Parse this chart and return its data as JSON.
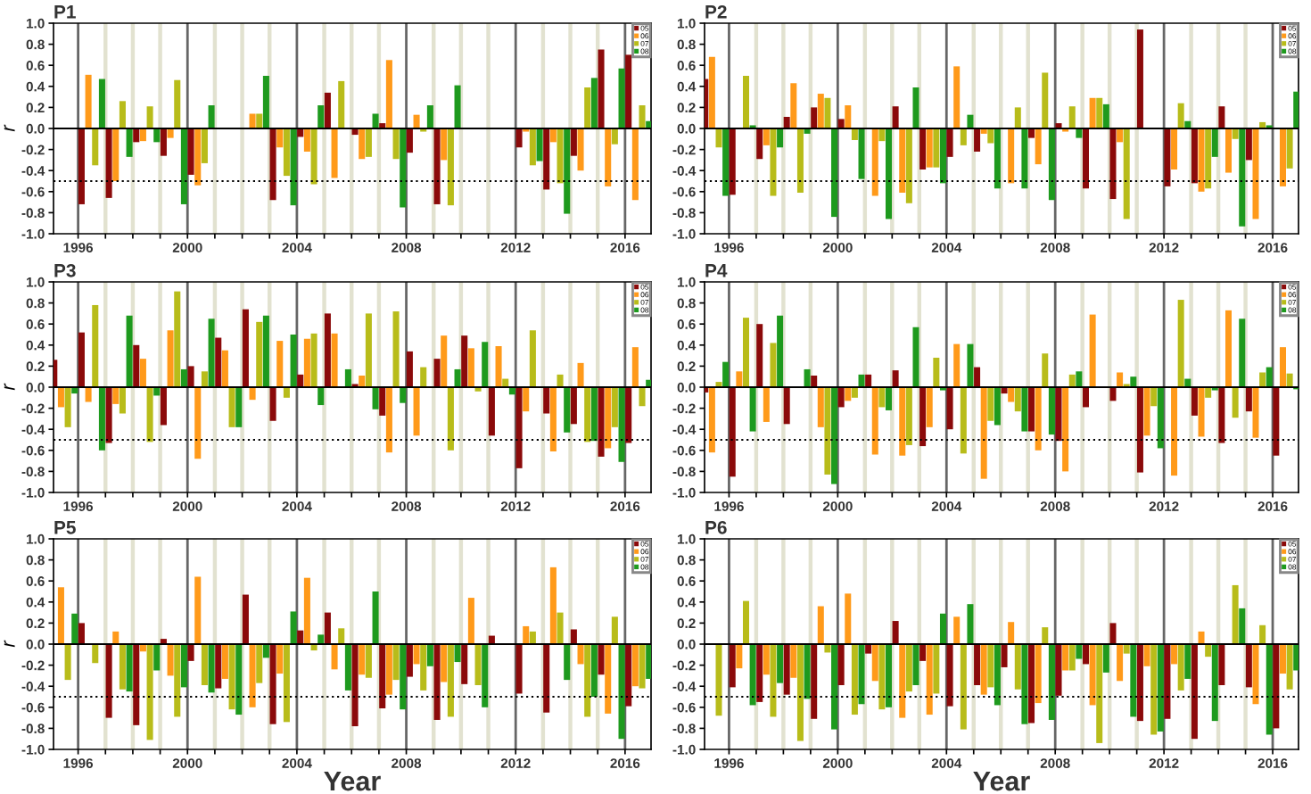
{
  "chart_data": [
    {
      "type": "bar",
      "title": "P1",
      "ylabel": "r",
      "x": [
        1996.5,
        1997.5,
        1998.5,
        1999.5,
        2000.5,
        2001.5,
        2002.5,
        2003.5,
        2004.5,
        2005.5,
        2006.5,
        2007.5,
        2008.5,
        2009.5,
        2010.5,
        2011.5,
        2012.5,
        2013.5,
        2014.5,
        2015.5,
        2016.5
      ],
      "series": [
        {
          "name": "05",
          "color": "#8b0a0a",
          "values": [
            -0.72,
            -0.66,
            -0.13,
            -0.26,
            -0.44,
            null,
            null,
            -0.68,
            -0.08,
            0.34,
            -0.06,
            0.05,
            -0.23,
            -0.72,
            null,
            null,
            -0.18,
            -0.58,
            -0.26,
            0.75,
            0.7
          ]
        },
        {
          "name": "06",
          "color": "#ff9a1a",
          "values": [
            0.51,
            -0.5,
            -0.12,
            -0.09,
            -0.54,
            null,
            0.14,
            -0.18,
            -0.22,
            -0.47,
            -0.29,
            0.65,
            0.13,
            -0.3,
            null,
            null,
            -0.03,
            -0.13,
            -0.4,
            -0.55,
            -0.68
          ]
        },
        {
          "name": "07",
          "color": "#b8bc1a",
          "values": [
            -0.35,
            0.26,
            0.21,
            0.46,
            -0.33,
            null,
            0.14,
            -0.45,
            -0.53,
            0.45,
            -0.27,
            -0.29,
            -0.03,
            -0.73,
            null,
            null,
            -0.35,
            -0.52,
            0.39,
            -0.15,
            0.22
          ]
        },
        {
          "name": "08",
          "color": "#1e9a1e",
          "values": [
            0.47,
            -0.27,
            -0.13,
            -0.72,
            0.22,
            null,
            0.5,
            -0.73,
            0.22,
            null,
            0.14,
            -0.75,
            0.22,
            0.41,
            null,
            null,
            -0.31,
            -0.81,
            0.48,
            0.57,
            0.07
          ]
        }
      ],
      "xlim": [
        1995.1,
        2016.95
      ],
      "ylim": [
        -1.0,
        1.0
      ],
      "xticks": [
        {
          "value": 1996,
          "label": "1996"
        },
        {
          "value": 1997,
          "label": null
        },
        {
          "value": 1998,
          "label": null
        },
        {
          "value": 1999,
          "label": null
        },
        {
          "value": 2000,
          "label": "2000"
        },
        {
          "value": 2001,
          "label": null
        },
        {
          "value": 2002,
          "label": null
        },
        {
          "value": 2003,
          "label": null
        },
        {
          "value": 2004,
          "label": "2004"
        },
        {
          "value": 2005,
          "label": null
        },
        {
          "value": 2006,
          "label": null
        },
        {
          "value": 2007,
          "label": null
        },
        {
          "value": 2008,
          "label": "2008"
        },
        {
          "value": 2009,
          "label": null
        },
        {
          "value": 2010,
          "label": null
        },
        {
          "value": 2011,
          "label": null
        },
        {
          "value": 2012,
          "label": "2012"
        },
        {
          "value": 2013,
          "label": null
        },
        {
          "value": 2014,
          "label": null
        },
        {
          "value": 2015,
          "label": null
        },
        {
          "value": 2016,
          "label": "2016"
        }
      ],
      "yticks": [
        {
          "value": -1.0,
          "label": "-1.0"
        },
        {
          "value": -0.8,
          "label": "-0.8"
        },
        {
          "value": -0.6,
          "label": "-0.6"
        },
        {
          "value": -0.4,
          "label": "-0.4"
        },
        {
          "value": -0.2,
          "label": "-0.2"
        },
        {
          "value": 0.0,
          "label": "0.0"
        },
        {
          "value": 0.2,
          "label": "0.2"
        },
        {
          "value": 0.4,
          "label": "0.4"
        },
        {
          "value": 0.6,
          "label": "0.6"
        },
        {
          "value": 0.8,
          "label": "0.8"
        },
        {
          "value": 1.0,
          "label": "1.0"
        }
      ],
      "grid": "x",
      "legend": "top right",
      "ref_lines": [
        {
          "axis": "y",
          "value": 0,
          "color": "#000000",
          "line_style": "solid"
        },
        {
          "axis": "y",
          "value": -0.5,
          "color": "#000000",
          "line_style": "dotted"
        }
      ]
    },
    {
      "type": "bar",
      "title": "P2",
      "x": [
        1995.5,
        1996.5,
        1997.5,
        1998.5,
        1999.5,
        2000.5,
        2001.5,
        2002.5,
        2003.5,
        2004.5,
        2005.5,
        2006.5,
        2007.5,
        2008.5,
        2009.5,
        2010.5,
        2011.5,
        2012.5,
        2013.5,
        2014.5,
        2015.5,
        2016.5
      ],
      "series": [
        {
          "name": "05",
          "color": "#8b0a0a",
          "values": [
            0.47,
            -0.63,
            -0.29,
            0.11,
            0.2,
            0.09,
            null,
            0.21,
            -0.39,
            -0.27,
            -0.22,
            null,
            -0.09,
            0.05,
            -0.57,
            -0.67,
            0.94,
            -0.55,
            -0.52,
            0.21,
            -0.3,
            null
          ]
        },
        {
          "name": "06",
          "color": "#ff9a1a",
          "values": [
            0.68,
            null,
            -0.16,
            0.43,
            0.33,
            0.22,
            -0.64,
            -0.61,
            -0.37,
            0.59,
            -0.05,
            -0.52,
            -0.34,
            -0.03,
            0.29,
            -0.13,
            null,
            -0.39,
            -0.6,
            -0.42,
            -0.86,
            -0.55
          ]
        },
        {
          "name": "07",
          "color": "#b8bc1a",
          "values": [
            -0.18,
            0.5,
            -0.64,
            -0.61,
            0.29,
            -0.11,
            -0.12,
            -0.71,
            -0.37,
            -0.16,
            -0.14,
            0.2,
            0.53,
            0.21,
            0.29,
            -0.86,
            null,
            0.24,
            -0.57,
            -0.1,
            0.06,
            -0.38
          ]
        },
        {
          "name": "08",
          "color": "#1e9a1e",
          "values": [
            -0.64,
            0.03,
            -0.18,
            -0.05,
            -0.84,
            -0.48,
            -0.86,
            0.39,
            -0.52,
            0.13,
            -0.57,
            -0.57,
            -0.68,
            -0.09,
            0.23,
            null,
            null,
            0.07,
            -0.27,
            -0.93,
            0.03,
            0.35
          ]
        }
      ],
      "xlim": [
        1995.1,
        2016.95
      ],
      "ylim": [
        -1.0,
        1.0
      ],
      "xticks": [
        {
          "value": 1996,
          "label": "1996"
        },
        {
          "value": 1997,
          "label": null
        },
        {
          "value": 1998,
          "label": null
        },
        {
          "value": 1999,
          "label": null
        },
        {
          "value": 2000,
          "label": "2000"
        },
        {
          "value": 2001,
          "label": null
        },
        {
          "value": 2002,
          "label": null
        },
        {
          "value": 2003,
          "label": null
        },
        {
          "value": 2004,
          "label": "2004"
        },
        {
          "value": 2005,
          "label": null
        },
        {
          "value": 2006,
          "label": null
        },
        {
          "value": 2007,
          "label": null
        },
        {
          "value": 2008,
          "label": "2008"
        },
        {
          "value": 2009,
          "label": null
        },
        {
          "value": 2010,
          "label": null
        },
        {
          "value": 2011,
          "label": null
        },
        {
          "value": 2012,
          "label": "2012"
        },
        {
          "value": 2013,
          "label": null
        },
        {
          "value": 2014,
          "label": null
        },
        {
          "value": 2015,
          "label": null
        },
        {
          "value": 2016,
          "label": "2016"
        }
      ],
      "yticks": [
        {
          "value": -1.0,
          "label": "-1.0"
        },
        {
          "value": -0.8,
          "label": "-0.8"
        },
        {
          "value": -0.6,
          "label": "-0.6"
        },
        {
          "value": -0.4,
          "label": "-0.4"
        },
        {
          "value": -0.2,
          "label": "-0.2"
        },
        {
          "value": 0.0,
          "label": "0.0"
        },
        {
          "value": 0.2,
          "label": "0.2"
        },
        {
          "value": 0.4,
          "label": "0.4"
        },
        {
          "value": 0.6,
          "label": "0.6"
        },
        {
          "value": 0.8,
          "label": "0.8"
        },
        {
          "value": 1.0,
          "label": "1.0"
        }
      ],
      "grid": "x",
      "legend": "top right",
      "ref_lines": [
        {
          "axis": "y",
          "value": 0,
          "color": "#000000",
          "line_style": "solid"
        },
        {
          "axis": "y",
          "value": -0.5,
          "color": "#000000",
          "line_style": "dotted"
        }
      ]
    },
    {
      "type": "bar",
      "title": "P3",
      "ylabel": "r",
      "x": [
        1995.5,
        1996.5,
        1997.5,
        1998.5,
        1999.5,
        2000.5,
        2001.5,
        2002.5,
        2003.5,
        2004.5,
        2005.5,
        2006.5,
        2007.5,
        2008.5,
        2009.5,
        2010.5,
        2011.5,
        2012.5,
        2013.5,
        2014.5,
        2015.5,
        2016.5
      ],
      "series": [
        {
          "name": "05",
          "color": "#8b0a0a",
          "values": [
            0.26,
            0.52,
            -0.53,
            0.4,
            -0.36,
            0.2,
            0.47,
            0.74,
            -0.32,
            0.12,
            0.7,
            0.03,
            -0.27,
            0.34,
            0.27,
            0.49,
            -0.46,
            -0.77,
            -0.25,
            -0.35,
            -0.66,
            -0.53
          ]
        },
        {
          "name": "06",
          "color": "#ff9a1a",
          "values": [
            -0.19,
            -0.14,
            -0.16,
            0.27,
            0.54,
            -0.68,
            0.35,
            -0.12,
            0.44,
            0.46,
            0.51,
            0.11,
            -0.62,
            -0.46,
            0.49,
            0.37,
            0.39,
            -0.23,
            -0.61,
            0.23,
            -0.58,
            0.38
          ]
        },
        {
          "name": "07",
          "color": "#b8bc1a",
          "values": [
            -0.38,
            0.78,
            -0.25,
            -0.52,
            0.91,
            0.15,
            -0.38,
            0.62,
            -0.1,
            0.51,
            null,
            0.7,
            0.72,
            0.19,
            -0.6,
            -0.04,
            0.08,
            0.54,
            0.12,
            -0.52,
            -0.38,
            -0.18
          ]
        },
        {
          "name": "08",
          "color": "#1e9a1e",
          "values": [
            -0.06,
            -0.6,
            0.68,
            -0.08,
            0.17,
            0.65,
            -0.38,
            0.68,
            0.5,
            -0.17,
            0.17,
            -0.21,
            -0.15,
            null,
            0.17,
            0.43,
            -0.07,
            null,
            -0.43,
            -0.51,
            -0.71,
            0.07
          ]
        }
      ],
      "xlim": [
        1995.1,
        2016.95
      ],
      "ylim": [
        -1.0,
        1.0
      ],
      "xticks": [
        {
          "value": 1996,
          "label": "1996"
        },
        {
          "value": 1997,
          "label": null
        },
        {
          "value": 1998,
          "label": null
        },
        {
          "value": 1999,
          "label": null
        },
        {
          "value": 2000,
          "label": "2000"
        },
        {
          "value": 2001,
          "label": null
        },
        {
          "value": 2002,
          "label": null
        },
        {
          "value": 2003,
          "label": null
        },
        {
          "value": 2004,
          "label": "2004"
        },
        {
          "value": 2005,
          "label": null
        },
        {
          "value": 2006,
          "label": null
        },
        {
          "value": 2007,
          "label": null
        },
        {
          "value": 2008,
          "label": "2008"
        },
        {
          "value": 2009,
          "label": null
        },
        {
          "value": 2010,
          "label": null
        },
        {
          "value": 2011,
          "label": null
        },
        {
          "value": 2012,
          "label": "2012"
        },
        {
          "value": 2013,
          "label": null
        },
        {
          "value": 2014,
          "label": null
        },
        {
          "value": 2015,
          "label": null
        },
        {
          "value": 2016,
          "label": "2016"
        }
      ],
      "yticks": [
        {
          "value": -1.0,
          "label": "-1.0"
        },
        {
          "value": -0.8,
          "label": "-0.8"
        },
        {
          "value": -0.6,
          "label": "-0.6"
        },
        {
          "value": -0.4,
          "label": "-0.4"
        },
        {
          "value": -0.2,
          "label": "-0.2"
        },
        {
          "value": 0.0,
          "label": "0.0"
        },
        {
          "value": 0.2,
          "label": "0.2"
        },
        {
          "value": 0.4,
          "label": "0.4"
        },
        {
          "value": 0.6,
          "label": "0.6"
        },
        {
          "value": 0.8,
          "label": "0.8"
        },
        {
          "value": 1.0,
          "label": "1.0"
        }
      ],
      "grid": "x",
      "legend": "top right",
      "ref_lines": [
        {
          "axis": "y",
          "value": 0,
          "color": "#000000",
          "line_style": "solid"
        },
        {
          "axis": "y",
          "value": -0.5,
          "color": "#000000",
          "line_style": "dotted"
        }
      ]
    },
    {
      "type": "bar",
      "title": "P4",
      "x": [
        1995.5,
        1996.5,
        1997.5,
        1998.5,
        1999.5,
        2000.5,
        2001.5,
        2002.5,
        2003.5,
        2004.5,
        2005.5,
        2006.5,
        2007.5,
        2008.5,
        2009.5,
        2010.5,
        2011.5,
        2012.5,
        2013.5,
        2014.5,
        2015.5,
        2016.5
      ],
      "series": [
        {
          "name": "05",
          "color": "#8b0a0a",
          "values": [
            -0.05,
            -0.85,
            0.6,
            -0.35,
            0.11,
            -0.19,
            0.12,
            0.16,
            -0.56,
            -0.4,
            0.19,
            -0.06,
            -0.42,
            -0.51,
            -0.19,
            -0.13,
            -0.81,
            null,
            -0.27,
            -0.53,
            -0.23,
            -0.65
          ]
        },
        {
          "name": "06",
          "color": "#ff9a1a",
          "values": [
            -0.62,
            0.15,
            -0.33,
            null,
            -0.38,
            -0.13,
            -0.64,
            -0.65,
            -0.38,
            0.41,
            -0.87,
            -0.14,
            -0.6,
            -0.8,
            0.69,
            0.14,
            -0.46,
            -0.84,
            -0.47,
            0.73,
            -0.48,
            0.38
          ]
        },
        {
          "name": "07",
          "color": "#b8bc1a",
          "values": [
            0.05,
            0.66,
            0.42,
            null,
            -0.83,
            -0.1,
            -0.19,
            -0.55,
            0.28,
            -0.63,
            -0.32,
            -0.23,
            0.32,
            0.12,
            null,
            0.03,
            -0.18,
            0.83,
            -0.1,
            -0.29,
            0.14,
            0.13
          ]
        },
        {
          "name": "08",
          "color": "#1e9a1e",
          "values": [
            0.24,
            -0.42,
            0.68,
            0.17,
            -0.92,
            0.12,
            -0.22,
            0.57,
            -0.03,
            0.41,
            -0.36,
            -0.42,
            -0.45,
            0.15,
            null,
            0.1,
            -0.58,
            0.08,
            -0.03,
            0.65,
            0.19,
            -0.02
          ]
        }
      ],
      "xlim": [
        1995.1,
        2016.95
      ],
      "ylim": [
        -1.0,
        1.0
      ],
      "xticks": [
        {
          "value": 1996,
          "label": "1996"
        },
        {
          "value": 1997,
          "label": null
        },
        {
          "value": 1998,
          "label": null
        },
        {
          "value": 1999,
          "label": null
        },
        {
          "value": 2000,
          "label": "2000"
        },
        {
          "value": 2001,
          "label": null
        },
        {
          "value": 2002,
          "label": null
        },
        {
          "value": 2003,
          "label": null
        },
        {
          "value": 2004,
          "label": "2004"
        },
        {
          "value": 2005,
          "label": null
        },
        {
          "value": 2006,
          "label": null
        },
        {
          "value": 2007,
          "label": null
        },
        {
          "value": 2008,
          "label": "2008"
        },
        {
          "value": 2009,
          "label": null
        },
        {
          "value": 2010,
          "label": null
        },
        {
          "value": 2011,
          "label": null
        },
        {
          "value": 2012,
          "label": "2012"
        },
        {
          "value": 2013,
          "label": null
        },
        {
          "value": 2014,
          "label": null
        },
        {
          "value": 2015,
          "label": null
        },
        {
          "value": 2016,
          "label": "2016"
        }
      ],
      "yticks": [
        {
          "value": -1.0,
          "label": "-1.0"
        },
        {
          "value": -0.8,
          "label": "-0.8"
        },
        {
          "value": -0.6,
          "label": "-0.6"
        },
        {
          "value": -0.4,
          "label": "-0.4"
        },
        {
          "value": -0.2,
          "label": "-0.2"
        },
        {
          "value": 0.0,
          "label": "0.0"
        },
        {
          "value": 0.2,
          "label": "0.2"
        },
        {
          "value": 0.4,
          "label": "0.4"
        },
        {
          "value": 0.6,
          "label": "0.6"
        },
        {
          "value": 0.8,
          "label": "0.8"
        },
        {
          "value": 1.0,
          "label": "1.0"
        }
      ],
      "grid": "x",
      "legend": "top right",
      "ref_lines": [
        {
          "axis": "y",
          "value": 0,
          "color": "#000000",
          "line_style": "solid"
        },
        {
          "axis": "y",
          "value": -0.5,
          "color": "#000000",
          "line_style": "dotted"
        }
      ]
    },
    {
      "type": "bar",
      "title": "P5",
      "ylabel": "r",
      "xlabel": "Year",
      "x": [
        1995.5,
        1996.5,
        1997.5,
        1998.5,
        1999.5,
        2000.5,
        2001.5,
        2002.5,
        2003.5,
        2004.5,
        2005.5,
        2006.5,
        2007.5,
        2008.5,
        2009.5,
        2010.5,
        2011.5,
        2012.5,
        2013.5,
        2014.5,
        2015.5,
        2016.5
      ],
      "series": [
        {
          "name": "05",
          "color": "#8b0a0a",
          "values": [
            null,
            0.2,
            -0.7,
            -0.77,
            0.05,
            -0.16,
            -0.42,
            0.47,
            -0.76,
            0.13,
            0.3,
            -0.78,
            -0.61,
            -0.31,
            -0.72,
            -0.38,
            0.08,
            -0.47,
            -0.65,
            0.14,
            -0.29,
            -0.59
          ]
        },
        {
          "name": "06",
          "color": "#ff9a1a",
          "values": [
            0.54,
            null,
            0.12,
            -0.07,
            -0.3,
            0.64,
            -0.33,
            -0.6,
            -0.28,
            0.63,
            -0.24,
            -0.29,
            -0.48,
            -0.19,
            -0.36,
            0.44,
            null,
            0.17,
            0.73,
            -0.19,
            -0.66,
            -0.4
          ]
        },
        {
          "name": "07",
          "color": "#b8bc1a",
          "values": [
            -0.34,
            -0.18,
            -0.43,
            -0.91,
            -0.69,
            -0.39,
            -0.62,
            -0.37,
            -0.74,
            -0.06,
            0.15,
            -0.32,
            -0.34,
            -0.44,
            -0.69,
            -0.39,
            null,
            0.12,
            0.3,
            -0.69,
            0.26,
            -0.42
          ]
        },
        {
          "name": "08",
          "color": "#1e9a1e",
          "values": [
            0.29,
            null,
            -0.45,
            -0.25,
            -0.41,
            -0.46,
            -0.67,
            -0.13,
            0.31,
            0.09,
            -0.44,
            0.5,
            -0.62,
            -0.21,
            -0.17,
            -0.6,
            null,
            null,
            -0.34,
            -0.5,
            -0.9,
            -0.33
          ]
        }
      ],
      "xlim": [
        1995.1,
        2016.95
      ],
      "ylim": [
        -1.0,
        1.0
      ],
      "xticks": [
        {
          "value": 1996,
          "label": "1996"
        },
        {
          "value": 1997,
          "label": null
        },
        {
          "value": 1998,
          "label": null
        },
        {
          "value": 1999,
          "label": null
        },
        {
          "value": 2000,
          "label": "2000"
        },
        {
          "value": 2001,
          "label": null
        },
        {
          "value": 2002,
          "label": null
        },
        {
          "value": 2003,
          "label": null
        },
        {
          "value": 2004,
          "label": "2004"
        },
        {
          "value": 2005,
          "label": null
        },
        {
          "value": 2006,
          "label": null
        },
        {
          "value": 2007,
          "label": null
        },
        {
          "value": 2008,
          "label": "2008"
        },
        {
          "value": 2009,
          "label": null
        },
        {
          "value": 2010,
          "label": null
        },
        {
          "value": 2011,
          "label": null
        },
        {
          "value": 2012,
          "label": "2012"
        },
        {
          "value": 2013,
          "label": null
        },
        {
          "value": 2014,
          "label": null
        },
        {
          "value": 2015,
          "label": null
        },
        {
          "value": 2016,
          "label": "2016"
        }
      ],
      "yticks": [
        {
          "value": -1.0,
          "label": "-1.0"
        },
        {
          "value": -0.8,
          "label": "-0.8"
        },
        {
          "value": -0.6,
          "label": "-0.6"
        },
        {
          "value": -0.4,
          "label": "-0.4"
        },
        {
          "value": -0.2,
          "label": "-0.2"
        },
        {
          "value": 0.0,
          "label": "0.0"
        },
        {
          "value": 0.2,
          "label": "0.2"
        },
        {
          "value": 0.4,
          "label": "0.4"
        },
        {
          "value": 0.6,
          "label": "0.6"
        },
        {
          "value": 0.8,
          "label": "0.8"
        },
        {
          "value": 1.0,
          "label": "1.0"
        }
      ],
      "grid": "x",
      "legend": "top right",
      "ref_lines": [
        {
          "axis": "y",
          "value": 0,
          "color": "#000000",
          "line_style": "solid"
        },
        {
          "axis": "y",
          "value": -0.5,
          "color": "#000000",
          "line_style": "dotted"
        }
      ]
    },
    {
      "type": "bar",
      "title": "P6",
      "xlabel": "Year",
      "x": [
        1995.5,
        1996.5,
        1997.5,
        1998.5,
        1999.5,
        2000.5,
        2001.5,
        2002.5,
        2003.5,
        2004.5,
        2005.5,
        2006.5,
        2007.5,
        2008.5,
        2009.5,
        2010.5,
        2011.5,
        2012.5,
        2013.5,
        2014.5,
        2015.5,
        2016.5
      ],
      "series": [
        {
          "name": "05",
          "color": "#8b0a0a",
          "values": [
            null,
            -0.41,
            -0.55,
            -0.48,
            -0.71,
            -0.39,
            -0.09,
            0.22,
            -0.16,
            -0.59,
            -0.39,
            -0.22,
            -0.75,
            -0.49,
            -0.19,
            0.2,
            -0.73,
            -0.71,
            -0.9,
            -0.39,
            -0.41,
            -0.8
          ]
        },
        {
          "name": "06",
          "color": "#ff9a1a",
          "values": [
            null,
            -0.23,
            -0.29,
            -0.32,
            0.36,
            0.48,
            -0.35,
            -0.7,
            -0.67,
            0.26,
            -0.48,
            0.21,
            -0.56,
            -0.25,
            -0.58,
            -0.35,
            -0.21,
            -0.19,
            0.12,
            null,
            -0.57,
            -0.28
          ]
        },
        {
          "name": "07",
          "color": "#b8bc1a",
          "values": [
            -0.68,
            0.41,
            -0.69,
            -0.92,
            -0.08,
            -0.67,
            -0.62,
            -0.45,
            -0.47,
            -0.81,
            -0.41,
            -0.43,
            0.16,
            -0.25,
            -0.94,
            -0.09,
            -0.86,
            -0.44,
            -0.12,
            0.56,
            0.18,
            -0.43
          ]
        },
        {
          "name": "08",
          "color": "#1e9a1e",
          "values": [
            null,
            -0.58,
            -0.37,
            -0.52,
            -0.81,
            -0.57,
            -0.6,
            -0.39,
            0.29,
            0.38,
            -0.58,
            -0.76,
            -0.72,
            -0.14,
            -0.27,
            -0.69,
            -0.83,
            -0.33,
            -0.73,
            0.34,
            -0.86,
            -0.25
          ]
        }
      ],
      "xlim": [
        1995.1,
        2016.95
      ],
      "ylim": [
        -1.0,
        1.0
      ],
      "xticks": [
        {
          "value": 1996,
          "label": "1996"
        },
        {
          "value": 1997,
          "label": null
        },
        {
          "value": 1998,
          "label": null
        },
        {
          "value": 1999,
          "label": null
        },
        {
          "value": 2000,
          "label": "2000"
        },
        {
          "value": 2001,
          "label": null
        },
        {
          "value": 2002,
          "label": null
        },
        {
          "value": 2003,
          "label": null
        },
        {
          "value": 2004,
          "label": "2004"
        },
        {
          "value": 2005,
          "label": null
        },
        {
          "value": 2006,
          "label": null
        },
        {
          "value": 2007,
          "label": null
        },
        {
          "value": 2008,
          "label": "2008"
        },
        {
          "value": 2009,
          "label": null
        },
        {
          "value": 2010,
          "label": null
        },
        {
          "value": 2011,
          "label": null
        },
        {
          "value": 2012,
          "label": "2012"
        },
        {
          "value": 2013,
          "label": null
        },
        {
          "value": 2014,
          "label": null
        },
        {
          "value": 2015,
          "label": null
        },
        {
          "value": 2016,
          "label": "2016"
        }
      ],
      "yticks": [
        {
          "value": -1.0,
          "label": "-1.0"
        },
        {
          "value": -0.8,
          "label": "-0.8"
        },
        {
          "value": -0.6,
          "label": "-0.6"
        },
        {
          "value": -0.4,
          "label": "-0.4"
        },
        {
          "value": -0.2,
          "label": "-0.2"
        },
        {
          "value": 0.0,
          "label": "0.0"
        },
        {
          "value": 0.2,
          "label": "0.2"
        },
        {
          "value": 0.4,
          "label": "0.4"
        },
        {
          "value": 0.6,
          "label": "0.6"
        },
        {
          "value": 0.8,
          "label": "0.8"
        },
        {
          "value": 1.0,
          "label": "1.0"
        }
      ],
      "grid": "x",
      "legend": "top right",
      "ref_lines": [
        {
          "axis": "y",
          "value": 0,
          "color": "#000000",
          "line_style": "solid"
        },
        {
          "axis": "y",
          "value": -0.5,
          "color": "#000000",
          "line_style": "dotted"
        }
      ]
    }
  ]
}
